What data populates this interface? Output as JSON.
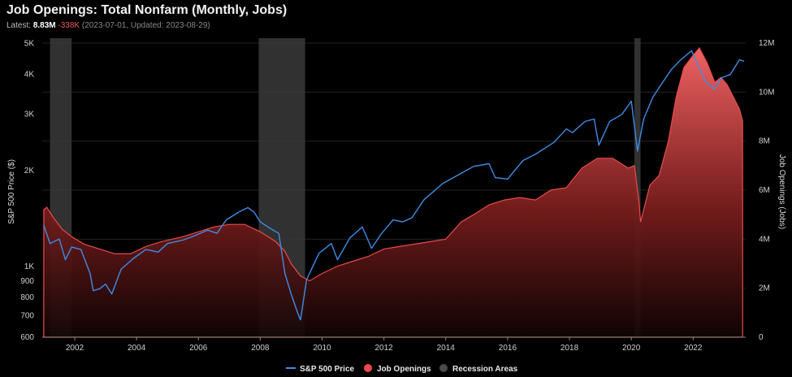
{
  "header": {
    "title": "Job Openings: Total Nonfarm (Monthly, Jobs)",
    "latest_label": "Latest:",
    "latest_value": "8.83M",
    "latest_change": "-338K",
    "latest_meta": "(2023-07-01, Updated: 2023-08-29)"
  },
  "colors": {
    "sp500": "#3f8ce6",
    "job_openings": "#e84b4b",
    "recession": "#3a3a3a"
  },
  "chart_data": {
    "type": "line",
    "title": "Job Openings: Total Nonfarm (Monthly, Jobs)",
    "x_range": [
      2000.95,
      2023.7
    ],
    "x_ticks": [
      2002,
      2004,
      2006,
      2008,
      2010,
      2012,
      2014,
      2016,
      2018,
      2020,
      2022
    ],
    "y_left": {
      "label": "S&P 500 Price ($)",
      "scale": "log",
      "range": [
        600,
        5200
      ],
      "ticks": [
        {
          "value": 600,
          "label": "600"
        },
        {
          "value": 700,
          "label": "700"
        },
        {
          "value": 800,
          "label": "800"
        },
        {
          "value": 900,
          "label": "900"
        },
        {
          "value": 1000,
          "label": "1K"
        },
        {
          "value": 2000,
          "label": "2K"
        },
        {
          "value": 3000,
          "label": "3K"
        },
        {
          "value": 4000,
          "label": "4K"
        },
        {
          "value": 5000,
          "label": "5K"
        }
      ]
    },
    "y_right": {
      "label": "Job Openings (Jobs)",
      "scale": "linear",
      "range": [
        0,
        12200000
      ],
      "ticks": [
        {
          "value": 0,
          "label": "0"
        },
        {
          "value": 2000000,
          "label": "2M"
        },
        {
          "value": 4000000,
          "label": "4M"
        },
        {
          "value": 6000000,
          "label": "6M"
        },
        {
          "value": 8000000,
          "label": "8M"
        },
        {
          "value": 10000000,
          "label": "10M"
        },
        {
          "value": 12000000,
          "label": "12M"
        }
      ]
    },
    "recessions": [
      [
        2001.2,
        2001.9
      ],
      [
        2007.95,
        2009.45
      ],
      [
        2020.1,
        2020.3
      ]
    ],
    "series": [
      {
        "name": "S&P 500 Price",
        "axis": "left",
        "style": "line",
        "points": [
          [
            2001.0,
            1350
          ],
          [
            2001.2,
            1180
          ],
          [
            2001.5,
            1220
          ],
          [
            2001.7,
            1050
          ],
          [
            2001.9,
            1150
          ],
          [
            2002.2,
            1130
          ],
          [
            2002.5,
            950
          ],
          [
            2002.6,
            840
          ],
          [
            2002.8,
            850
          ],
          [
            2003.0,
            880
          ],
          [
            2003.2,
            820
          ],
          [
            2003.5,
            980
          ],
          [
            2003.9,
            1060
          ],
          [
            2004.3,
            1130
          ],
          [
            2004.7,
            1110
          ],
          [
            2005.0,
            1180
          ],
          [
            2005.5,
            1210
          ],
          [
            2005.9,
            1250
          ],
          [
            2006.3,
            1300
          ],
          [
            2006.6,
            1270
          ],
          [
            2006.9,
            1400
          ],
          [
            2007.3,
            1480
          ],
          [
            2007.6,
            1530
          ],
          [
            2007.8,
            1480
          ],
          [
            2008.0,
            1380
          ],
          [
            2008.3,
            1320
          ],
          [
            2008.6,
            1270
          ],
          [
            2008.8,
            950
          ],
          [
            2009.0,
            820
          ],
          [
            2009.2,
            720
          ],
          [
            2009.3,
            680
          ],
          [
            2009.5,
            910
          ],
          [
            2009.9,
            1100
          ],
          [
            2010.3,
            1180
          ],
          [
            2010.5,
            1050
          ],
          [
            2010.9,
            1230
          ],
          [
            2011.3,
            1330
          ],
          [
            2011.6,
            1140
          ],
          [
            2011.9,
            1260
          ],
          [
            2012.3,
            1400
          ],
          [
            2012.6,
            1380
          ],
          [
            2012.9,
            1420
          ],
          [
            2013.3,
            1620
          ],
          [
            2013.9,
            1820
          ],
          [
            2014.5,
            1960
          ],
          [
            2014.9,
            2060
          ],
          [
            2015.4,
            2100
          ],
          [
            2015.6,
            1900
          ],
          [
            2016.0,
            1880
          ],
          [
            2016.5,
            2150
          ],
          [
            2016.9,
            2250
          ],
          [
            2017.5,
            2450
          ],
          [
            2017.9,
            2700
          ],
          [
            2018.1,
            2630
          ],
          [
            2018.5,
            2850
          ],
          [
            2018.8,
            2900
          ],
          [
            2018.95,
            2400
          ],
          [
            2019.3,
            2850
          ],
          [
            2019.7,
            3000
          ],
          [
            2020.0,
            3300
          ],
          [
            2020.2,
            2300
          ],
          [
            2020.4,
            2900
          ],
          [
            2020.7,
            3400
          ],
          [
            2020.95,
            3700
          ],
          [
            2021.3,
            4150
          ],
          [
            2021.6,
            4450
          ],
          [
            2021.95,
            4750
          ],
          [
            2022.1,
            4400
          ],
          [
            2022.4,
            3800
          ],
          [
            2022.7,
            3600
          ],
          [
            2022.9,
            3900
          ],
          [
            2023.2,
            4000
          ],
          [
            2023.5,
            4450
          ],
          [
            2023.65,
            4400
          ]
        ]
      },
      {
        "name": "Job Openings",
        "axis": "right",
        "style": "area",
        "points": [
          [
            2001.0,
            5200000
          ],
          [
            2001.1,
            5300000
          ],
          [
            2001.3,
            4900000
          ],
          [
            2001.6,
            4400000
          ],
          [
            2001.9,
            4100000
          ],
          [
            2002.3,
            3800000
          ],
          [
            2002.8,
            3600000
          ],
          [
            2003.3,
            3400000
          ],
          [
            2003.8,
            3400000
          ],
          [
            2004.3,
            3700000
          ],
          [
            2004.8,
            3900000
          ],
          [
            2005.5,
            4100000
          ],
          [
            2006.0,
            4300000
          ],
          [
            2006.5,
            4500000
          ],
          [
            2007.0,
            4600000
          ],
          [
            2007.5,
            4600000
          ],
          [
            2008.0,
            4300000
          ],
          [
            2008.5,
            3900000
          ],
          [
            2008.8,
            3500000
          ],
          [
            2009.0,
            3000000
          ],
          [
            2009.3,
            2500000
          ],
          [
            2009.6,
            2300000
          ],
          [
            2010.0,
            2600000
          ],
          [
            2010.5,
            2900000
          ],
          [
            2011.0,
            3100000
          ],
          [
            2011.5,
            3300000
          ],
          [
            2012.0,
            3600000
          ],
          [
            2012.5,
            3700000
          ],
          [
            2013.0,
            3800000
          ],
          [
            2013.5,
            3900000
          ],
          [
            2014.0,
            4000000
          ],
          [
            2014.5,
            4700000
          ],
          [
            2014.9,
            5000000
          ],
          [
            2015.4,
            5400000
          ],
          [
            2015.9,
            5600000
          ],
          [
            2016.4,
            5700000
          ],
          [
            2016.9,
            5600000
          ],
          [
            2017.4,
            6000000
          ],
          [
            2017.9,
            6100000
          ],
          [
            2018.4,
            6900000
          ],
          [
            2018.9,
            7300000
          ],
          [
            2019.4,
            7300000
          ],
          [
            2019.9,
            6900000
          ],
          [
            2020.1,
            7000000
          ],
          [
            2020.25,
            5500000
          ],
          [
            2020.3,
            4700000
          ],
          [
            2020.6,
            6200000
          ],
          [
            2020.9,
            6600000
          ],
          [
            2021.2,
            8000000
          ],
          [
            2021.45,
            9800000
          ],
          [
            2021.7,
            11000000
          ],
          [
            2022.0,
            11500000
          ],
          [
            2022.2,
            11800000
          ],
          [
            2022.45,
            11200000
          ],
          [
            2022.7,
            10400000
          ],
          [
            2022.9,
            10600000
          ],
          [
            2023.1,
            10300000
          ],
          [
            2023.3,
            9800000
          ],
          [
            2023.5,
            9300000
          ],
          [
            2023.6,
            8830000
          ]
        ]
      }
    ],
    "legend": {
      "placement": "bottom-center",
      "items": [
        {
          "label": "S&P 500 Price",
          "marker": "line"
        },
        {
          "label": "Job Openings",
          "marker": "dot"
        },
        {
          "label": "Recession Areas",
          "marker": "dot"
        }
      ]
    },
    "grid": true
  }
}
